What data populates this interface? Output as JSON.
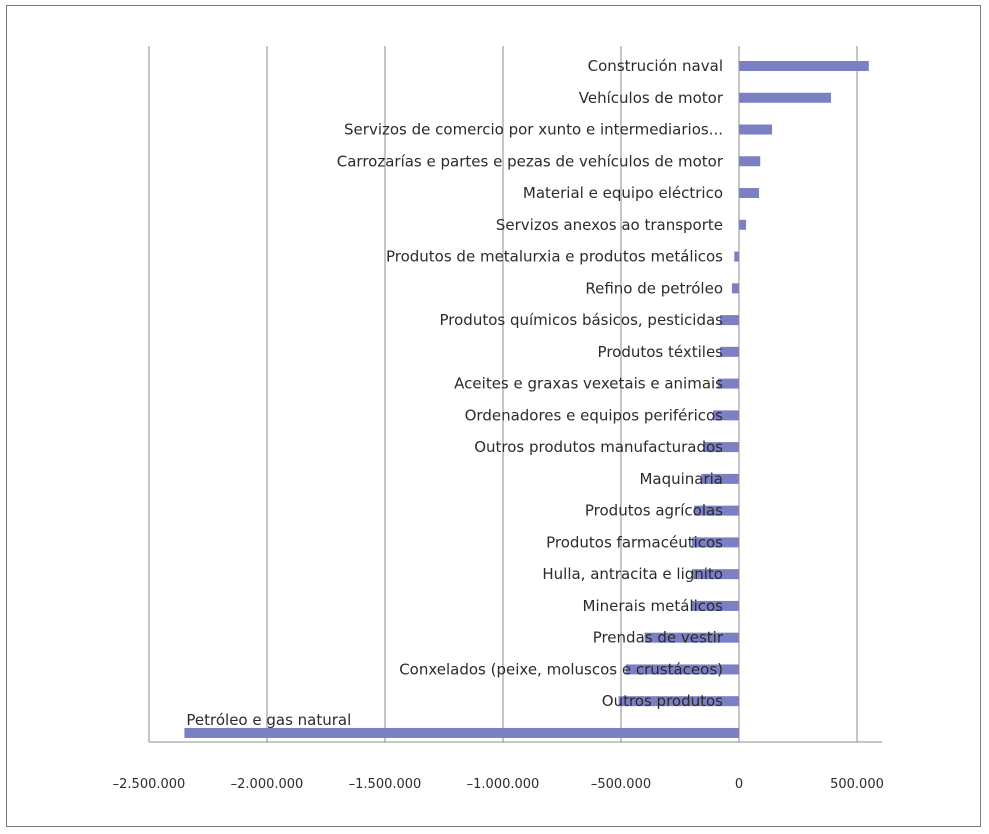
{
  "chart_data": {
    "type": "bar",
    "orientation": "horizontal",
    "title": "",
    "xlabel": "",
    "ylabel": "",
    "xlim": [
      -2500000,
      600000
    ],
    "x_ticks": [
      -2500000,
      -2000000,
      -1500000,
      -1000000,
      -500000,
      0,
      500000
    ],
    "x_tick_labels": [
      "–2.500.000",
      "–2.000.000",
      "–1.500.000",
      "–1.000.000",
      "–500.000",
      "0",
      "500.000"
    ],
    "grid": true,
    "legend": "none",
    "bar_color": "#7b7fc4",
    "categories": [
      "Construción naval",
      "Vehículos de motor",
      "Servizos de comercio por xunto e intermediarios...",
      "Carrozarías e partes e pezas de vehículos de motor",
      "Material e equipo eléctrico",
      "Servizos anexos ao transporte",
      "Produtos de metalurxia e produtos metálicos",
      "Refino de petróleo",
      "Produtos químicos básicos, pesticidas",
      "Produtos téxtiles",
      "Aceites e graxas vexetais e animais",
      "Ordenadores e equipos periféricos",
      "Outros produtos manufacturados",
      "Maquinaria",
      "Produtos agrícolas",
      "Produtos farmacéuticos",
      "Hulla, antracita e lignito",
      "Minerais metálicos",
      "Prendas de vestir",
      "Conxelados (peixe, moluscos e crustáceos)",
      "Outros produtos",
      "Petróleo e gas natural"
    ],
    "values": [
      550000,
      390000,
      140000,
      90000,
      85000,
      30000,
      -20000,
      -30000,
      -80000,
      -80000,
      -90000,
      -110000,
      -150000,
      -160000,
      -190000,
      -200000,
      -200000,
      -200000,
      -400000,
      -480000,
      -510000,
      -2350000
    ]
  }
}
